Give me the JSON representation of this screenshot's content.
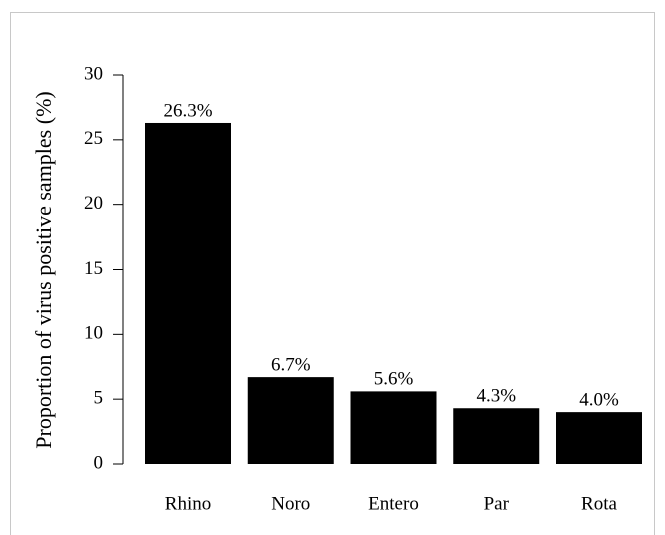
{
  "chart_data": {
    "type": "bar",
    "y_label": "Proportion of virus positive samples (%)",
    "categories": [
      "Rhino",
      "Noro",
      "Entero",
      "Par",
      "Rota"
    ],
    "values": [
      26.3,
      6.7,
      5.6,
      4.3,
      4.0
    ],
    "value_labels": [
      "26.3%",
      "6.7%",
      "5.6%",
      "4.3%",
      "4.0%"
    ],
    "color": "#000000",
    "ylim": [
      0,
      30
    ],
    "yticks": [
      0,
      5,
      10,
      15,
      20,
      25,
      30
    ],
    "grid": false
  }
}
